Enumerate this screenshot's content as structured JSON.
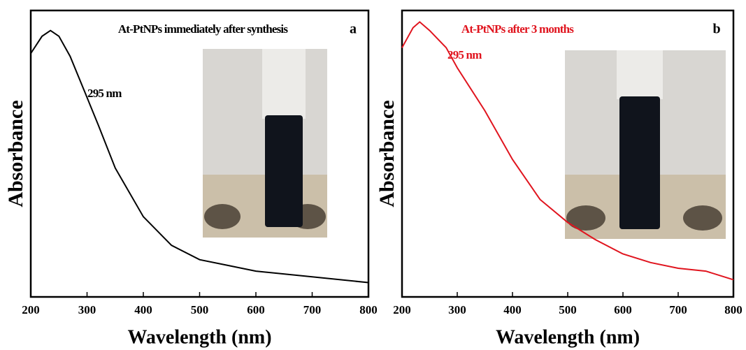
{
  "chart_data": [
    {
      "type": "line",
      "title": "At-PtNPs immediately after synthesis",
      "panel_label": "a",
      "annotation": "295 nm",
      "xlabel": "Wavelength (nm)",
      "ylabel": "Absorbance",
      "color": "#000000",
      "x": [
        200,
        220,
        235,
        250,
        270,
        295,
        320,
        350,
        400,
        450,
        500,
        550,
        600,
        700,
        800
      ],
      "values": [
        0.85,
        0.91,
        0.93,
        0.91,
        0.84,
        0.72,
        0.6,
        0.45,
        0.28,
        0.18,
        0.13,
        0.11,
        0.09,
        0.07,
        0.05
      ],
      "xlim": [
        200,
        800
      ],
      "xticks": [
        200,
        300,
        400,
        500,
        600,
        700,
        800
      ],
      "ylim": [
        0,
        1
      ]
    },
    {
      "type": "line",
      "title": "At-PtNPs after 3 months",
      "panel_label": "b",
      "annotation": "295 nm",
      "xlabel": "Wavelength (nm)",
      "ylabel": "Absorbance",
      "color": "#e0141e",
      "x": [
        200,
        220,
        232,
        250,
        280,
        300,
        350,
        400,
        450,
        500,
        550,
        600,
        650,
        700,
        750,
        800
      ],
      "values": [
        0.87,
        0.94,
        0.96,
        0.93,
        0.87,
        0.8,
        0.65,
        0.48,
        0.34,
        0.26,
        0.2,
        0.15,
        0.12,
        0.1,
        0.09,
        0.06
      ],
      "xlim": [
        200,
        800
      ],
      "xticks": [
        200,
        300,
        400,
        500,
        600,
        700,
        800
      ],
      "ylim": [
        0,
        1
      ]
    }
  ]
}
